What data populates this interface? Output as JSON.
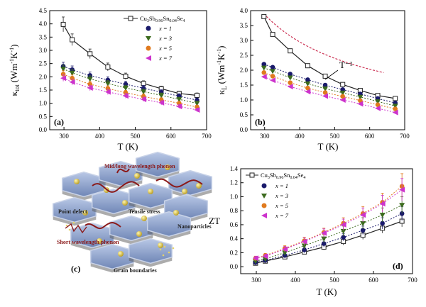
{
  "chart_data": [
    {
      "id": "a",
      "type": "line",
      "panel_label": "(a)",
      "xlabel": "T (K)",
      "ylabel": "κtot (Wm⁻¹K⁻¹)",
      "ylabel_main": "κ",
      "ylabel_sub": "tot",
      "ylabel_unit": "(Wm",
      "xlim": [
        260,
        700
      ],
      "ylim": [
        0.0,
        4.5
      ],
      "xticks": [
        "300",
        "400",
        "500",
        "600",
        "700"
      ],
      "yticks": [
        "0.0",
        "0.5",
        "1.0",
        "1.5",
        "2.0",
        "2.5",
        "3.0",
        "3.5",
        "4.0",
        "4.5"
      ],
      "legend_position": "top-right",
      "series": [
        {
          "name": "Cu3Sb0.96Sn0.04Se4",
          "legend_label": "Cu",
          "color": "#222222",
          "marker": "square-open",
          "x": [
            298,
            323,
            373,
            423,
            473,
            523,
            573,
            623,
            673
          ],
          "y": [
            3.98,
            3.4,
            2.87,
            2.37,
            2.02,
            1.75,
            1.55,
            1.37,
            1.3
          ],
          "err": [
            0.28,
            0.22,
            0.18,
            0.15,
            0.12,
            0.1,
            0.1,
            0.09,
            0.09
          ]
        },
        {
          "name": "x = 1",
          "color": "#1a1a6b",
          "marker": "circle",
          "x": [
            298,
            323,
            373,
            423,
            473,
            523,
            573,
            623,
            673
          ],
          "y": [
            2.4,
            2.27,
            2.05,
            1.88,
            1.72,
            1.57,
            1.42,
            1.27,
            1.12
          ],
          "err": [
            0.15,
            0.14,
            0.13,
            0.12,
            0.11,
            0.1,
            0.09,
            0.09,
            0.08
          ]
        },
        {
          "name": "x = 3",
          "color": "#3c6b1e",
          "marker": "triangle-down",
          "x": [
            298,
            323,
            373,
            423,
            473,
            523,
            573,
            623,
            673
          ],
          "y": [
            2.3,
            2.15,
            1.92,
            1.75,
            1.58,
            1.44,
            1.3,
            1.15,
            1.0
          ],
          "err": [
            0.14,
            0.13,
            0.12,
            0.11,
            0.1,
            0.1,
            0.09,
            0.08,
            0.08
          ]
        },
        {
          "name": "x = 5",
          "color": "#e07a1e",
          "marker": "circle",
          "x": [
            298,
            323,
            373,
            423,
            473,
            523,
            573,
            623,
            673
          ],
          "y": [
            2.1,
            1.95,
            1.72,
            1.56,
            1.4,
            1.26,
            1.13,
            1.0,
            0.86
          ],
          "err": [
            0.13,
            0.12,
            0.11,
            0.1,
            0.09,
            0.09,
            0.08,
            0.08,
            0.07
          ]
        },
        {
          "name": "x = 7",
          "color": "#cc33cc",
          "marker": "triangle-left",
          "x": [
            298,
            323,
            373,
            423,
            473,
            523,
            573,
            623,
            673
          ],
          "y": [
            1.95,
            1.8,
            1.58,
            1.43,
            1.28,
            1.15,
            1.02,
            0.88,
            0.75
          ],
          "err": [
            0.12,
            0.11,
            0.1,
            0.1,
            0.09,
            0.08,
            0.08,
            0.07,
            0.07
          ]
        }
      ]
    },
    {
      "id": "b",
      "type": "line",
      "panel_label": "(b)",
      "xlabel": "T (K)",
      "ylabel": "κL (Wm⁻¹K⁻¹)",
      "ylabel_main": "κ",
      "ylabel_sub": "L",
      "ylabel_unit": "(Wm",
      "xlim": [
        260,
        700
      ],
      "ylim": [
        0.0,
        4.0
      ],
      "xticks": [
        "300",
        "400",
        "500",
        "600",
        "700"
      ],
      "yticks": [
        "0.0",
        "0.5",
        "1.0",
        "1.5",
        "2.0",
        "2.5",
        "3.0",
        "3.5",
        "4.0"
      ],
      "annotation": "T⁻¹",
      "series": [
        {
          "name": "Cu3Sb0.96Sn0.04Se4",
          "color": "#222222",
          "marker": "square-open",
          "x": [
            298,
            323,
            373,
            423,
            473,
            523,
            573,
            623,
            673
          ],
          "y": [
            3.8,
            3.2,
            2.65,
            2.15,
            1.8,
            1.52,
            1.32,
            1.15,
            1.05
          ]
        },
        {
          "name": "x = 1",
          "color": "#1a1a6b",
          "marker": "circle",
          "x": [
            298,
            323,
            373,
            423,
            473,
            523,
            573,
            623,
            673
          ],
          "y": [
            2.2,
            2.1,
            1.87,
            1.68,
            1.5,
            1.35,
            1.2,
            1.05,
            0.9
          ]
        },
        {
          "name": "x = 3",
          "color": "#3c6b1e",
          "marker": "triangle-down",
          "x": [
            298,
            323,
            373,
            423,
            473,
            523,
            573,
            623,
            673
          ],
          "y": [
            2.08,
            1.97,
            1.75,
            1.55,
            1.38,
            1.24,
            1.1,
            0.95,
            0.8
          ]
        },
        {
          "name": "x = 5",
          "color": "#e07a1e",
          "marker": "circle",
          "x": [
            298,
            323,
            373,
            423,
            473,
            523,
            573,
            623,
            673
          ],
          "y": [
            1.92,
            1.8,
            1.58,
            1.4,
            1.25,
            1.12,
            0.98,
            0.84,
            0.7
          ]
        },
        {
          "name": "x = 7",
          "color": "#cc33cc",
          "marker": "triangle-left",
          "x": [
            298,
            323,
            373,
            423,
            473,
            523,
            573,
            623,
            673
          ],
          "y": [
            1.78,
            1.66,
            1.45,
            1.28,
            1.13,
            1.0,
            0.87,
            0.72,
            0.58
          ]
        }
      ]
    },
    {
      "id": "d",
      "type": "line",
      "panel_label": "(d)",
      "xlabel": "T (K)",
      "ylabel": "ZT",
      "xlim": [
        260,
        700
      ],
      "ylim": [
        -0.1,
        1.4
      ],
      "xticks": [
        "300",
        "400",
        "500",
        "600",
        "700"
      ],
      "yticks": [
        "0.0",
        "0.2",
        "0.4",
        "0.6",
        "0.8",
        "1.0",
        "1.2",
        "1.4"
      ],
      "legend_position": "top-left",
      "series": [
        {
          "name": "Cu3Sb0.96Sn0.04Se4",
          "color": "#222222",
          "marker": "square-open",
          "x": [
            298,
            323,
            373,
            423,
            473,
            523,
            573,
            623,
            673
          ],
          "y": [
            0.05,
            0.08,
            0.14,
            0.21,
            0.28,
            0.36,
            0.45,
            0.55,
            0.65
          ],
          "err": [
            0.02,
            0.02,
            0.03,
            0.03,
            0.04,
            0.05,
            0.06,
            0.07,
            0.08
          ]
        },
        {
          "name": "x = 1",
          "color": "#1a1a6b",
          "marker": "circle",
          "x": [
            298,
            323,
            373,
            423,
            473,
            523,
            573,
            623,
            673
          ],
          "y": [
            0.06,
            0.09,
            0.16,
            0.24,
            0.33,
            0.42,
            0.52,
            0.62,
            0.76
          ],
          "err": [
            0.02,
            0.02,
            0.03,
            0.04,
            0.05,
            0.05,
            0.06,
            0.08,
            0.1
          ]
        },
        {
          "name": "x = 3",
          "color": "#3c6b1e",
          "marker": "triangle-down",
          "x": [
            298,
            323,
            373,
            423,
            473,
            523,
            573,
            623,
            673
          ],
          "y": [
            0.08,
            0.11,
            0.2,
            0.3,
            0.4,
            0.51,
            0.62,
            0.74,
            0.88
          ],
          "err": [
            0.02,
            0.03,
            0.04,
            0.05,
            0.06,
            0.07,
            0.08,
            0.1,
            0.12
          ]
        },
        {
          "name": "x = 5",
          "color": "#e07a1e",
          "marker": "circle",
          "x": [
            298,
            323,
            373,
            423,
            473,
            523,
            573,
            623,
            673
          ],
          "y": [
            0.12,
            0.16,
            0.26,
            0.37,
            0.49,
            0.62,
            0.76,
            0.92,
            1.15
          ],
          "err": [
            0.03,
            0.03,
            0.04,
            0.05,
            0.06,
            0.08,
            0.1,
            0.13,
            0.18
          ]
        },
        {
          "name": "x = 7",
          "color": "#cc33cc",
          "marker": "triangle-left",
          "x": [
            298,
            323,
            373,
            423,
            473,
            523,
            573,
            623,
            673
          ],
          "y": [
            0.12,
            0.15,
            0.25,
            0.36,
            0.48,
            0.6,
            0.74,
            0.9,
            1.1
          ],
          "err": [
            0.03,
            0.03,
            0.04,
            0.05,
            0.06,
            0.08,
            0.1,
            0.12,
            0.16
          ]
        }
      ]
    }
  ],
  "legend": {
    "entries": [
      "x = 1",
      "x = 3",
      "x = 5",
      "x = 7"
    ],
    "compound": {
      "cu": "Cu",
      "s3": "3",
      "sb": "Sb",
      "s096": "0.96",
      "sn": "Sn",
      "s004": "0.04",
      "se": "Se",
      "s4": "4"
    }
  },
  "axis_units": {
    "exp1": "-1",
    "k": "K",
    "exp2": "-1",
    "close": ")"
  },
  "illustration": {
    "panel_label": "(c)",
    "labels": {
      "mid_long": "Mid/long wavelength phonon",
      "point_defect": "Point defect",
      "tensile_stress": "Tensile stress",
      "nanoparticles": "Nanoparticles",
      "short_wavelength": "Short wavelength phonon",
      "grain_boundaries": "Grain boundaries"
    }
  }
}
